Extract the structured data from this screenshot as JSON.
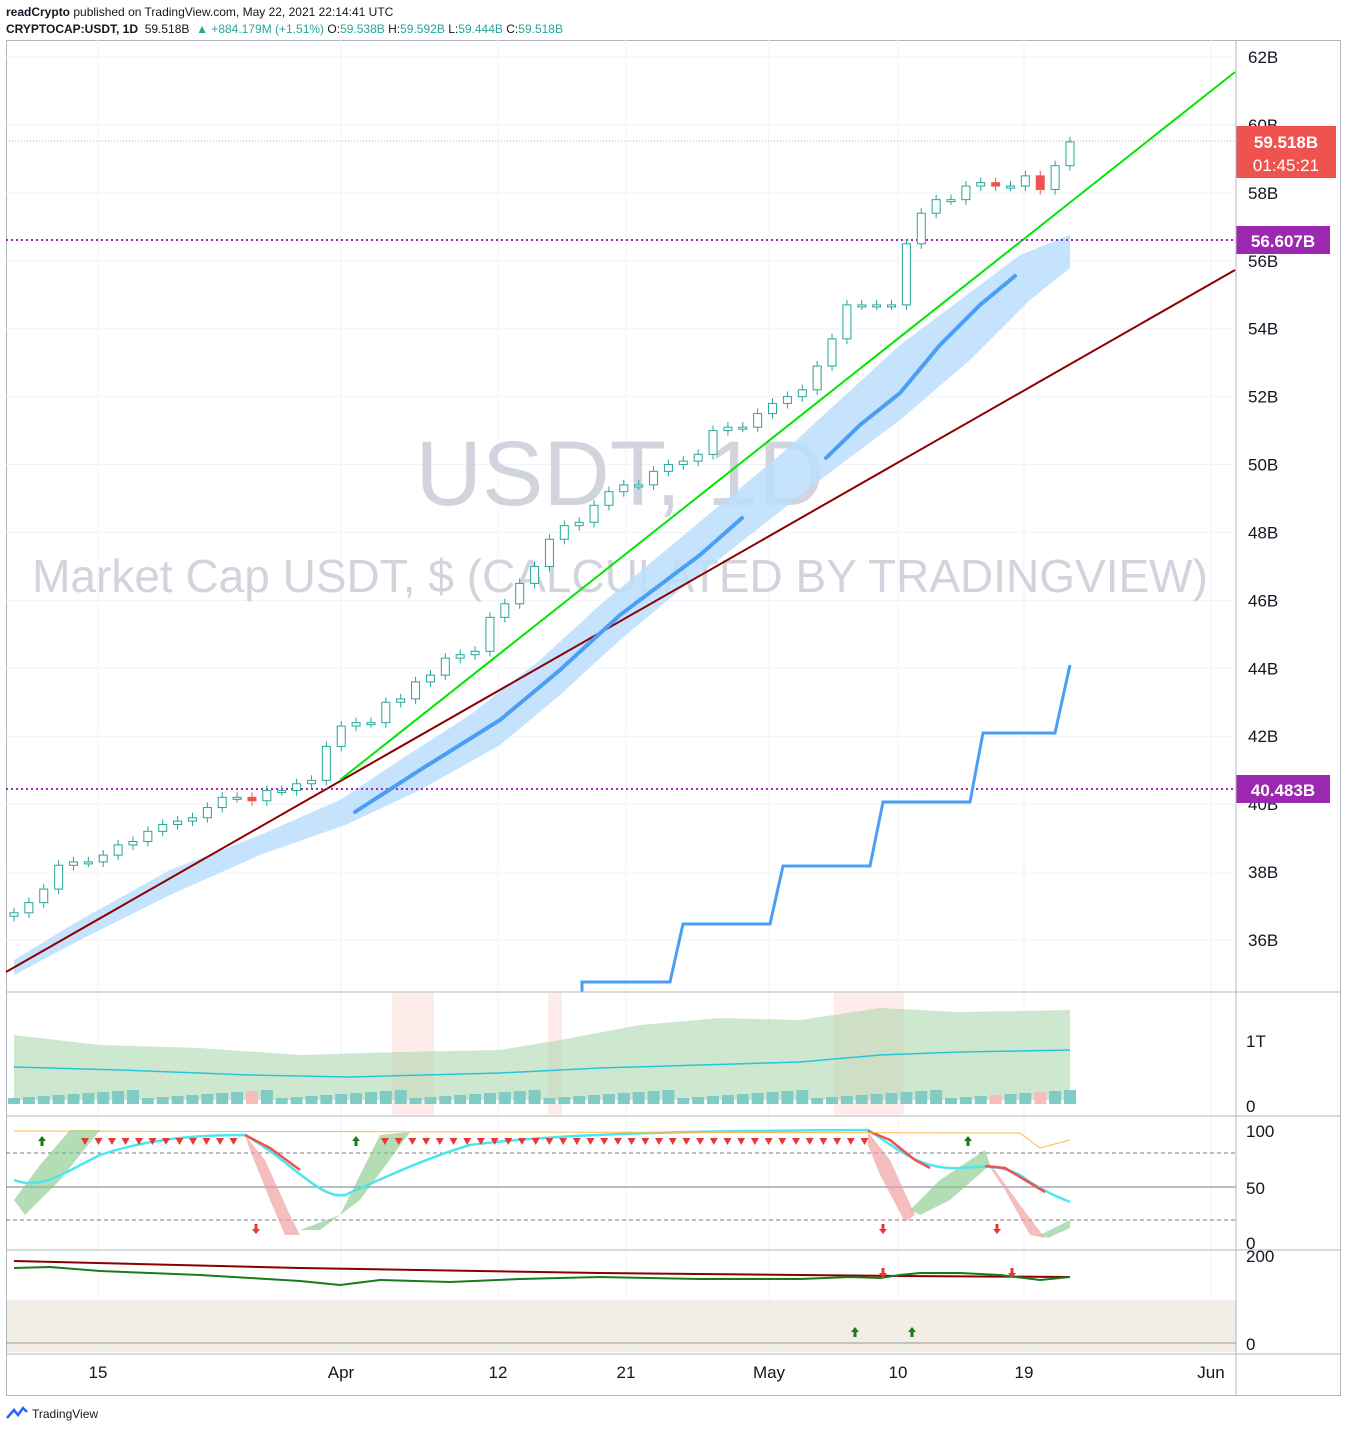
{
  "header": {
    "publisher": "readCrypto",
    "published_text": "published on TradingView.com, May 22, 2021 22:14:41 UTC",
    "symbol": "CRYPTOCAP:USDT, 1D",
    "last": "59.518B",
    "change": "▲ +884.179M (+1.51%)",
    "o_label": "O:",
    "o_val": "59.538B",
    "h_label": "H:",
    "h_val": "59.592B",
    "l_label": "L:",
    "l_val": "59.444B",
    "c_label": "C:",
    "c_val": "59.518B"
  },
  "watermark": {
    "line1": "USDT, 1D",
    "line2": "Market Cap USDT, $ (CALCULATED BY TRADINGVIEW)"
  },
  "price_labels": {
    "current": "59.518B",
    "countdown": "01:45:21",
    "level_upper": "56.607B",
    "level_lower": "40.483B"
  },
  "footer": {
    "brand": "TradingView"
  },
  "colors": {
    "up": "#26a69a",
    "down": "#ef5350",
    "level": "#9c27b0",
    "green_line": "#00e600",
    "red_line": "#8b0000",
    "band": "#bbdefb",
    "blue_line": "#4a9ff5"
  },
  "chart_data": {
    "type": "candlestick",
    "y_axis": {
      "ticks": [
        "36B",
        "38B",
        "40B",
        "42B",
        "44B",
        "46B",
        "48B",
        "50B",
        "52B",
        "54B",
        "56B",
        "58B",
        "60B",
        "62B"
      ],
      "range": [
        34.5,
        62.5
      ]
    },
    "x_axis": {
      "ticks": [
        "15",
        "Apr",
        "12",
        "21",
        "May",
        "10",
        "19",
        "Jun"
      ]
    },
    "close_series": [
      36.8,
      37.1,
      37.5,
      38.2,
      38.3,
      38.3,
      38.5,
      38.8,
      38.9,
      39.2,
      39.4,
      39.5,
      39.6,
      39.9,
      40.2,
      40.2,
      40.1,
      40.4,
      40.4,
      40.6,
      40.7,
      41.7,
      42.3,
      42.4,
      42.4,
      43.0,
      43.1,
      43.6,
      43.8,
      44.3,
      44.4,
      44.5,
      45.5,
      45.9,
      46.5,
      47.0,
      47.8,
      48.2,
      48.3,
      48.8,
      49.2,
      49.4,
      49.4,
      49.8,
      50.0,
      50.1,
      50.3,
      51.0,
      51.1,
      51.1,
      51.5,
      51.8,
      52.0,
      52.2,
      52.9,
      53.7,
      54.7,
      54.7,
      54.7,
      54.7,
      56.5,
      57.4,
      57.8,
      57.8,
      58.2,
      58.3,
      58.2,
      58.2,
      58.5,
      58.1,
      58.8,
      59.5
    ],
    "levels": [
      56.607,
      40.483
    ],
    "indicators": {
      "volume_pane": {
        "ticks": [
          "1T",
          "0"
        ]
      },
      "oscillator_pane": {
        "ticks": [
          "100",
          "50",
          "0"
        ]
      },
      "bottom_pane": {
        "ticks": [
          "200",
          "0"
        ]
      }
    }
  }
}
